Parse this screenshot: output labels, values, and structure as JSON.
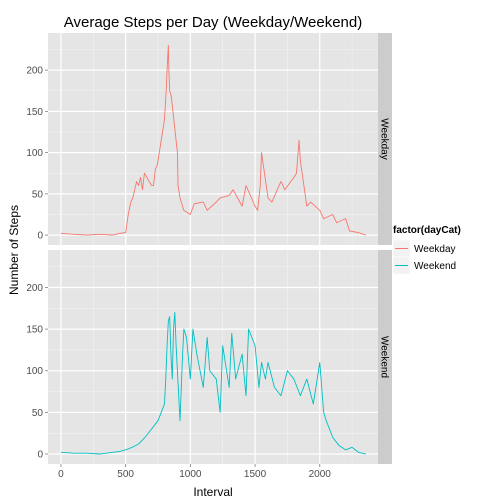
{
  "chart_data": {
    "type": "line",
    "title": "Average Steps per Day (Weekday/Weekend)",
    "xlabel": "Interval",
    "ylabel": "Number of Steps",
    "xlim": [
      -100,
      2450
    ],
    "ylim": [
      -12,
      245
    ],
    "x_ticks": [
      0,
      500,
      1000,
      1500,
      2000
    ],
    "x_tick_labels": [
      "0",
      "500",
      "1000",
      "1500",
      "2000"
    ],
    "y_ticks": [
      0,
      50,
      100,
      150,
      200
    ],
    "y_tick_labels": [
      "0",
      "50",
      "100",
      "150",
      "200"
    ],
    "grid": true,
    "legend_title": "factor(dayCat)",
    "legend_position": "right",
    "facets": [
      "Weekday",
      "Weekend"
    ],
    "series": [
      {
        "name": "Weekday",
        "color": "#F8766D",
        "x": [
          0,
          100,
          200,
          300,
          400,
          450,
          500,
          520,
          540,
          555,
          570,
          585,
          600,
          615,
          630,
          645,
          700,
          715,
          730,
          745,
          800,
          815,
          820,
          830,
          835,
          840,
          850,
          855,
          900,
          905,
          910,
          920,
          930,
          940,
          950,
          1000,
          1030,
          1100,
          1130,
          1200,
          1230,
          1300,
          1330,
          1400,
          1430,
          1500,
          1520,
          1540,
          1550,
          1600,
          1630,
          1700,
          1730,
          1800,
          1820,
          1840,
          1850,
          1900,
          1930,
          2000,
          2030,
          2100,
          2130,
          2200,
          2230,
          2300,
          2355
        ],
        "y": [
          2,
          1,
          0,
          1,
          0,
          2,
          3,
          25,
          40,
          45,
          55,
          65,
          60,
          70,
          55,
          75,
          60,
          60,
          80,
          85,
          140,
          180,
          200,
          230,
          195,
          175,
          170,
          165,
          100,
          60,
          55,
          45,
          40,
          35,
          30,
          25,
          38,
          40,
          30,
          40,
          45,
          48,
          55,
          35,
          60,
          35,
          30,
          60,
          100,
          45,
          40,
          65,
          55,
          70,
          75,
          115,
          90,
          35,
          40,
          30,
          20,
          25,
          15,
          20,
          5,
          3,
          0
        ]
      },
      {
        "name": "Weekend",
        "color": "#00BFC4",
        "x": [
          0,
          100,
          200,
          300,
          400,
          450,
          500,
          550,
          600,
          650,
          700,
          750,
          800,
          810,
          820,
          830,
          840,
          850,
          860,
          870,
          880,
          890,
          900,
          920,
          940,
          950,
          970,
          1000,
          1020,
          1050,
          1100,
          1130,
          1150,
          1200,
          1230,
          1250,
          1300,
          1320,
          1350,
          1400,
          1430,
          1450,
          1500,
          1530,
          1550,
          1580,
          1600,
          1650,
          1700,
          1750,
          1800,
          1850,
          1900,
          1950,
          2000,
          2030,
          2050,
          2100,
          2150,
          2200,
          2250,
          2300,
          2355
        ],
        "y": [
          2,
          1,
          1,
          0,
          2,
          3,
          5,
          8,
          12,
          20,
          30,
          40,
          60,
          90,
          130,
          160,
          165,
          120,
          90,
          150,
          170,
          130,
          100,
          40,
          120,
          150,
          140,
          90,
          150,
          120,
          80,
          140,
          100,
          90,
          50,
          130,
          80,
          145,
          90,
          120,
          70,
          150,
          130,
          80,
          110,
          90,
          110,
          80,
          70,
          100,
          90,
          70,
          90,
          60,
          110,
          50,
          40,
          20,
          10,
          5,
          8,
          2,
          0
        ]
      }
    ]
  },
  "layout_text": {
    "legend_items": [
      "Weekday",
      "Weekend"
    ]
  }
}
